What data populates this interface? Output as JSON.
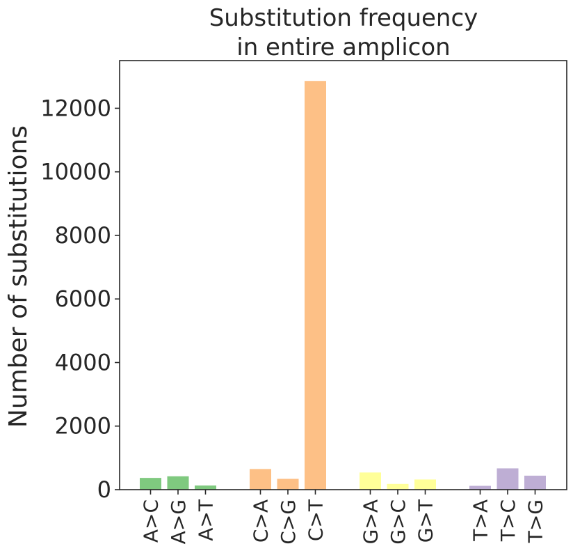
{
  "chart_data": {
    "type": "bar",
    "title": [
      "Substitution frequency",
      "in entire amplicon"
    ],
    "xlabel": "",
    "ylabel": "Number of substitutions",
    "ylim": [
      0,
      13500
    ],
    "yticks": [
      0,
      2000,
      4000,
      6000,
      8000,
      10000,
      12000
    ],
    "grid": false,
    "groups": [
      {
        "color": "#7fc97f",
        "categories": [
          "A>C",
          "A>G",
          "A>T"
        ],
        "values": [
          370,
          420,
          130
        ]
      },
      {
        "color": "#fdc086",
        "categories": [
          "C>A",
          "C>G",
          "C>T"
        ],
        "values": [
          650,
          340,
          12860
        ]
      },
      {
        "color": "#ffff99",
        "categories": [
          "G>A",
          "G>C",
          "G>T"
        ],
        "values": [
          540,
          180,
          320
        ]
      },
      {
        "color": "#beaed4",
        "categories": [
          "T>A",
          "T>C",
          "T>G"
        ],
        "values": [
          120,
          670,
          440
        ]
      }
    ]
  }
}
